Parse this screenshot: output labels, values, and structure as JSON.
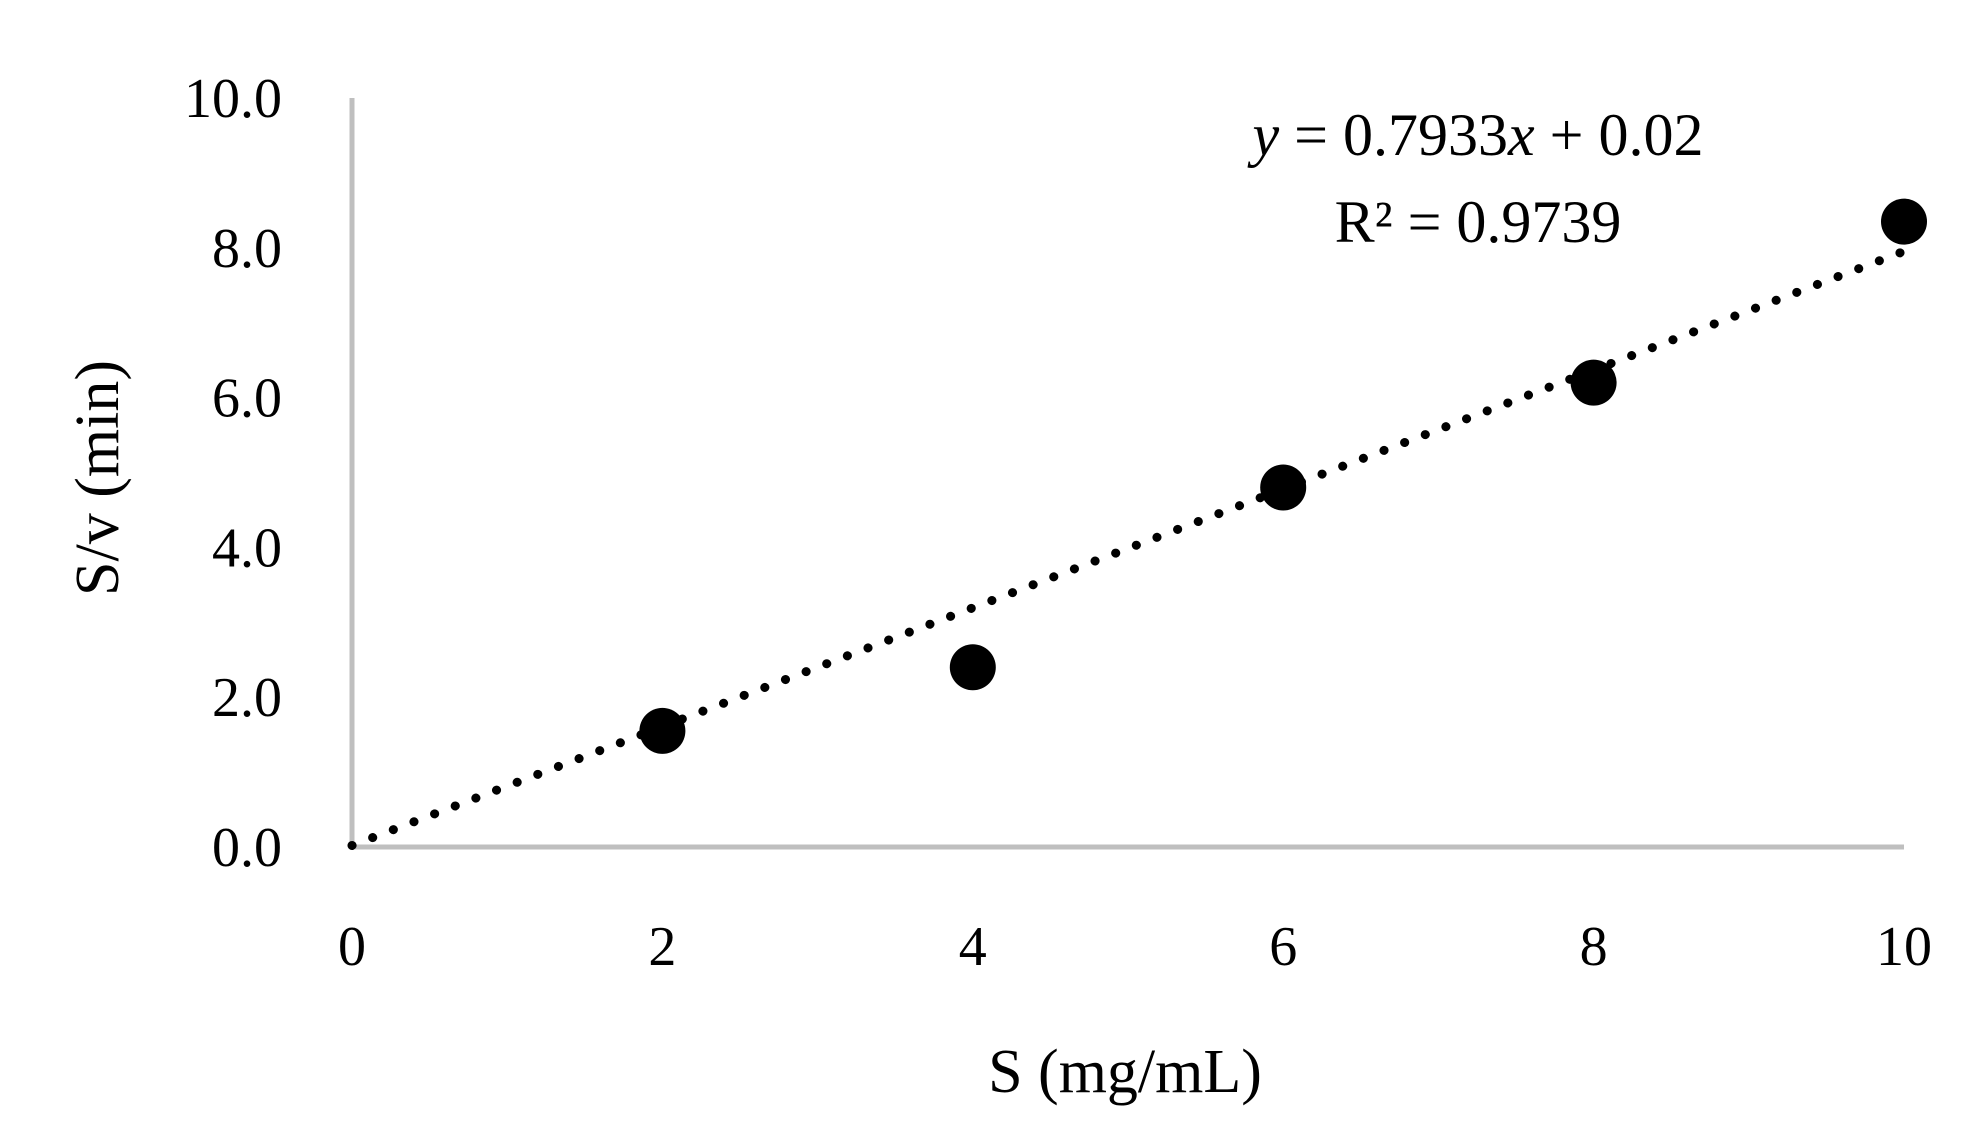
{
  "chart_data": {
    "type": "scatter",
    "xlabel": "S (mg/mL)",
    "ylabel": "S/v (min)",
    "xlim": [
      0,
      10
    ],
    "ylim": [
      0,
      10
    ],
    "x_ticks": [
      "0",
      "2",
      "4",
      "6",
      "8",
      "10"
    ],
    "x_tick_values": [
      0,
      2,
      4,
      6,
      8,
      10
    ],
    "y_ticks": [
      "0.0",
      "2.0",
      "4.0",
      "6.0",
      "8.0",
      "10.0"
    ],
    "y_tick_values": [
      0,
      2,
      4,
      6,
      8,
      10
    ],
    "grid": false,
    "series": [
      {
        "x": [
          2,
          4,
          6,
          8,
          10
        ],
        "y": [
          1.55,
          2.4,
          4.8,
          6.2,
          8.35
        ],
        "marker": "filled-circle",
        "color": "#000000"
      }
    ],
    "trendline": {
      "style": "dotted",
      "color": "#000000",
      "slope": 0.7933,
      "intercept": 0.02,
      "x_range": [
        0,
        10
      ]
    },
    "annotation": {
      "equation_y": "y",
      "equation_mid": " = 0.7933",
      "equation_x": "x",
      "equation_end": " + 0.02",
      "r_squared": "R² = 0.9739"
    },
    "axis_color": "#bfbfbf"
  }
}
